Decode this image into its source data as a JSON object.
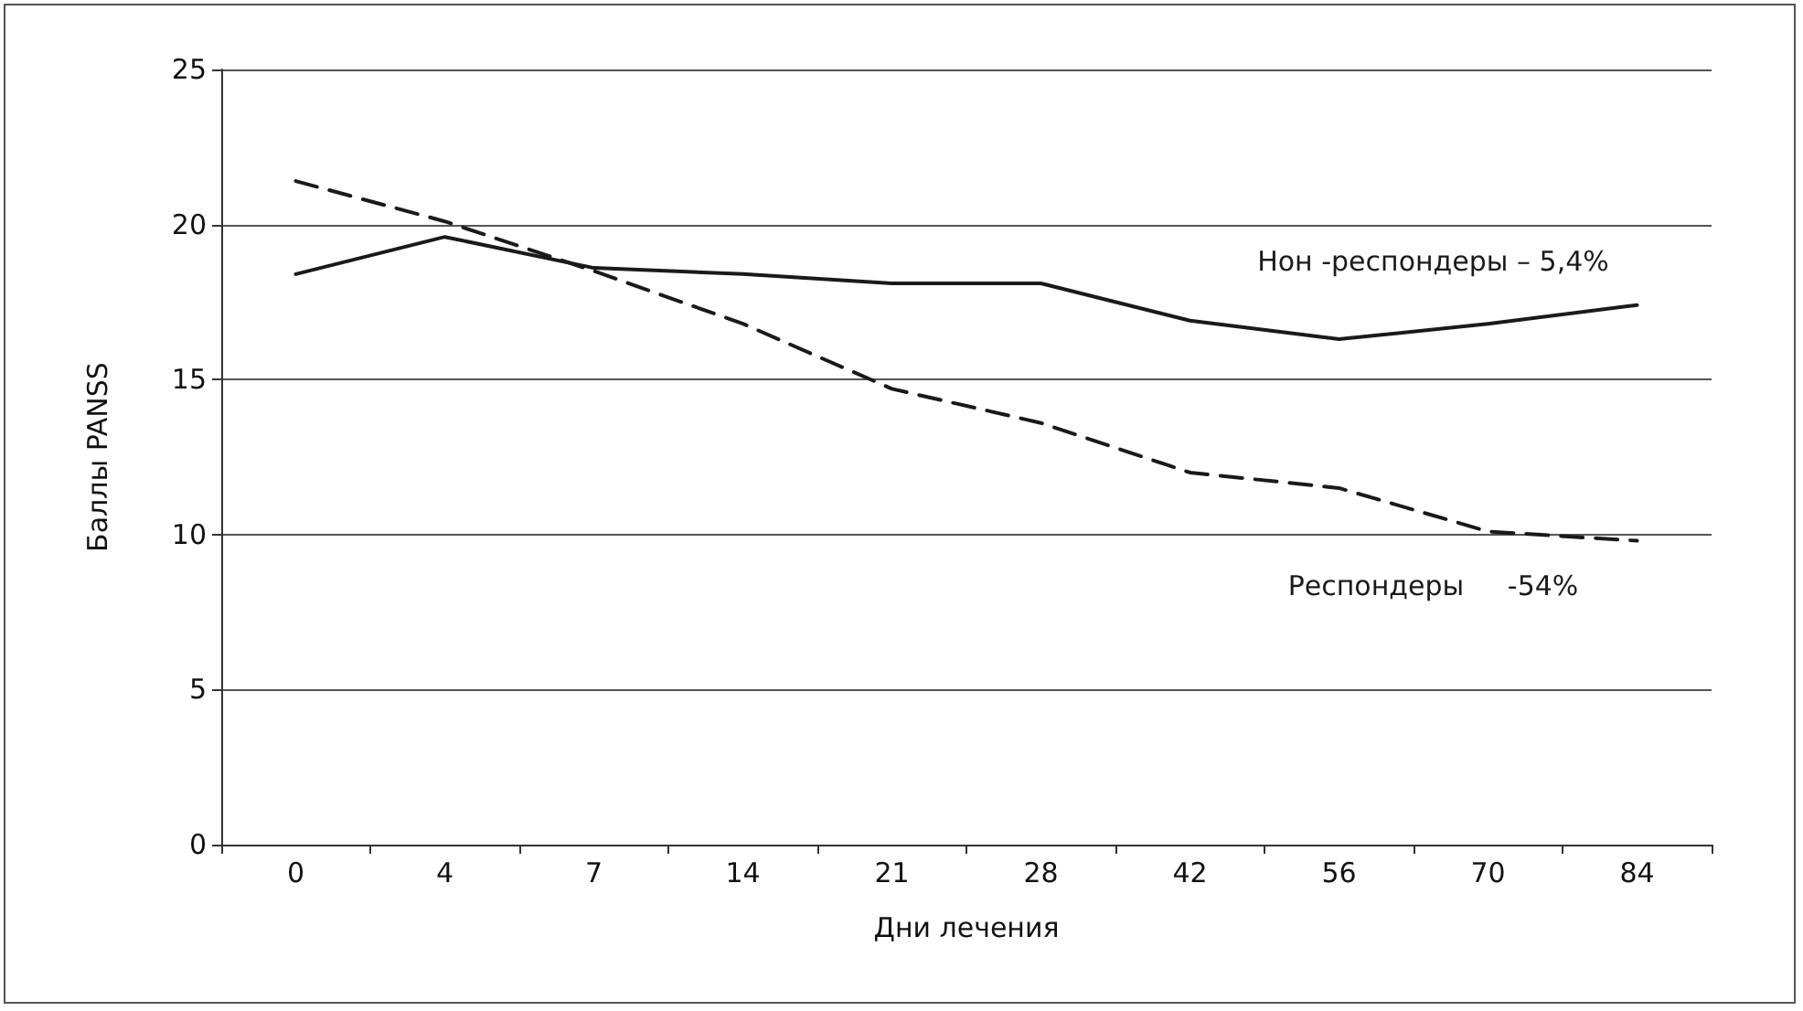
{
  "chart_data": {
    "type": "line",
    "xlabel": "Дни лечения",
    "ylabel": "Баллы PANSS",
    "categories": [
      "0",
      "4",
      "7",
      "14",
      "21",
      "28",
      "42",
      "56",
      "70",
      "84"
    ],
    "series": [
      {
        "name": "Нон -респондеры – 5,4%",
        "color": "#1a1a1a",
        "line_style": "solid",
        "values": [
          18.4,
          19.6,
          18.6,
          18.4,
          18.1,
          18.1,
          16.9,
          16.3,
          16.8,
          17.4
        ]
      },
      {
        "name": "Респондеры     -54%",
        "color": "#1a1a1a",
        "line_style": "dashed",
        "values": [
          21.4,
          20.1,
          18.5,
          16.8,
          14.7,
          13.6,
          12.0,
          11.5,
          10.1,
          9.8
        ]
      }
    ],
    "ylim": [
      0,
      25
    ],
    "yticks": [
      0,
      5,
      10,
      15,
      20,
      25
    ],
    "grid": "y",
    "marker": "none"
  }
}
